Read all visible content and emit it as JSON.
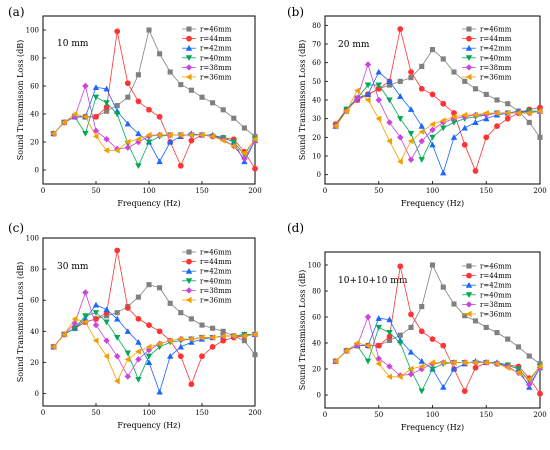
{
  "chart_data": [
    {
      "panel_label": "(a)",
      "thickness": "10 mm",
      "type": "line",
      "xlabel": "Frequency (Hz)",
      "ylabel": "Sound Transmisson Loss (dB)",
      "xlim": [
        0,
        200
      ],
      "ylim": [
        -10,
        110
      ],
      "xticks": [
        "0",
        "50",
        "100",
        "150",
        "200"
      ],
      "yticks": [
        "0",
        "20",
        "40",
        "60",
        "80",
        "100"
      ],
      "legend_position": "top-right",
      "x": [
        10,
        20,
        30,
        40,
        50,
        60,
        70,
        80,
        90,
        100,
        110,
        120,
        130,
        140,
        150,
        160,
        170,
        180,
        190,
        200
      ],
      "series": [
        {
          "name": "r=46mm",
          "color": "#808080",
          "marker": "square",
          "values": [
            26,
            34,
            38,
            38,
            38,
            42,
            46,
            52,
            68,
            100,
            83,
            70,
            61,
            57,
            52,
            48,
            43,
            37,
            30,
            24
          ]
        },
        {
          "name": "r=44mm",
          "color": "#ff3333",
          "marker": "circle",
          "values": [
            26,
            34,
            38,
            38,
            38,
            45,
            99,
            62,
            49,
            43,
            38,
            20,
            3,
            21,
            25,
            24,
            23,
            22,
            13,
            1
          ]
        },
        {
          "name": "r=42mm",
          "color": "#1a66ff",
          "marker": "triangle-up",
          "values": [
            26,
            34,
            38,
            38,
            59,
            58,
            42,
            33,
            26,
            20,
            6,
            20,
            24,
            26,
            25,
            25,
            23,
            20,
            6,
            21
          ]
        },
        {
          "name": "r=40mm",
          "color": "#00aa55",
          "marker": "triangle-down",
          "values": [
            26,
            34,
            38,
            26,
            52,
            48,
            40,
            19,
            3,
            20,
            24,
            25,
            25,
            25,
            25,
            24,
            23,
            20,
            11,
            22
          ]
        },
        {
          "name": "r=38mm",
          "color": "#cc44dd",
          "marker": "diamond",
          "values": [
            26,
            34,
            38,
            60,
            28,
            22,
            15,
            16,
            20,
            24,
            25,
            25,
            25,
            25,
            25,
            24,
            22,
            17,
            8,
            21
          ]
        },
        {
          "name": "r=36mm",
          "color": "#f0a000",
          "marker": "triangle-left",
          "values": [
            26,
            34,
            40,
            38,
            24,
            14,
            14,
            20,
            22,
            25,
            25,
            25,
            25,
            25,
            25,
            24,
            21,
            17,
            12,
            22
          ]
        }
      ]
    },
    {
      "panel_label": "(b)",
      "thickness": "20 mm",
      "type": "line",
      "xlabel": "Frequency (Hz)",
      "ylabel": "Sound Transmisson Loss (dB)",
      "xlim": [
        0,
        200
      ],
      "ylim": [
        -5,
        85
      ],
      "xticks": [
        "0",
        "50",
        "100",
        "150",
        "200"
      ],
      "yticks": [
        "0",
        "10",
        "20",
        "30",
        "40",
        "50",
        "60",
        "70",
        "80"
      ],
      "legend_position": "top-right",
      "x": [
        10,
        20,
        30,
        40,
        50,
        60,
        70,
        80,
        90,
        100,
        110,
        120,
        130,
        140,
        150,
        160,
        170,
        180,
        190,
        200
      ],
      "series": [
        {
          "name": "r=46mm",
          "color": "#808080",
          "marker": "square",
          "values": [
            27,
            35,
            40,
            43,
            46,
            48,
            50,
            52,
            58,
            67,
            62,
            55,
            50,
            46,
            43,
            40,
            38,
            34,
            28,
            20
          ]
        },
        {
          "name": "r=44mm",
          "color": "#ff3333",
          "marker": "circle",
          "values": [
            27,
            35,
            40,
            43,
            46,
            50,
            78,
            55,
            46,
            43,
            38,
            33,
            16,
            2,
            20,
            26,
            30,
            33,
            35,
            36
          ]
        },
        {
          "name": "r=42mm",
          "color": "#1a66ff",
          "marker": "triangle-up",
          "values": [
            26,
            35,
            41,
            43,
            55,
            50,
            42,
            35,
            26,
            16,
            1,
            20,
            25,
            28,
            30,
            32,
            33,
            34,
            34,
            34
          ]
        },
        {
          "name": "r=40mm",
          "color": "#00aa55",
          "marker": "triangle-down",
          "values": [
            26,
            35,
            41,
            48,
            48,
            40,
            30,
            22,
            8,
            20,
            25,
            28,
            30,
            31,
            32,
            33,
            33,
            33,
            34,
            34
          ]
        },
        {
          "name": "r=38mm",
          "color": "#cc44dd",
          "marker": "diamond",
          "values": [
            26,
            34,
            41,
            59,
            40,
            28,
            20,
            8,
            18,
            24,
            28,
            30,
            31,
            32,
            32,
            33,
            33,
            33,
            33,
            34
          ]
        },
        {
          "name": "r=36mm",
          "color": "#f0a000",
          "marker": "triangle-left",
          "values": [
            26,
            34,
            45,
            40,
            30,
            18,
            7,
            18,
            23,
            27,
            29,
            31,
            32,
            32,
            33,
            33,
            33,
            33,
            33,
            34
          ]
        }
      ]
    },
    {
      "panel_label": "(c)",
      "thickness": "30 mm",
      "type": "line",
      "xlabel": "Frequency (Hz)",
      "ylabel": "Sound Transmisson Loss (dB)",
      "xlim": [
        0,
        200
      ],
      "ylim": [
        -8,
        100
      ],
      "xticks": [
        "0",
        "50",
        "100",
        "150",
        "200"
      ],
      "yticks": [
        "0",
        "20",
        "40",
        "60",
        "80",
        "100"
      ],
      "legend_position": "top-right",
      "x": [
        10,
        20,
        30,
        40,
        50,
        60,
        70,
        80,
        90,
        100,
        110,
        120,
        130,
        140,
        150,
        160,
        170,
        180,
        190,
        200
      ],
      "series": [
        {
          "name": "r=46mm",
          "color": "#808080",
          "marker": "square",
          "values": [
            30,
            38,
            42,
            46,
            48,
            50,
            52,
            56,
            62,
            70,
            68,
            58,
            52,
            48,
            44,
            42,
            40,
            37,
            34,
            25
          ]
        },
        {
          "name": "r=44mm",
          "color": "#ff3333",
          "marker": "circle",
          "values": [
            30,
            38,
            42,
            46,
            48,
            52,
            92,
            55,
            48,
            44,
            40,
            34,
            24,
            6,
            24,
            30,
            34,
            36,
            37,
            38
          ]
        },
        {
          "name": "r=42mm",
          "color": "#1a66ff",
          "marker": "triangle-up",
          "values": [
            30,
            38,
            42,
            48,
            57,
            54,
            48,
            40,
            33,
            20,
            1,
            24,
            30,
            33,
            35,
            36,
            37,
            37,
            38,
            38
          ]
        },
        {
          "name": "r=40mm",
          "color": "#00aa55",
          "marker": "triangle-down",
          "values": [
            30,
            38,
            42,
            50,
            52,
            46,
            36,
            26,
            9,
            24,
            30,
            33,
            34,
            35,
            36,
            36,
            37,
            37,
            38,
            38
          ]
        },
        {
          "name": "r=38mm",
          "color": "#cc44dd",
          "marker": "diamond",
          "values": [
            30,
            38,
            45,
            65,
            44,
            34,
            24,
            11,
            22,
            28,
            32,
            34,
            35,
            35,
            36,
            36,
            37,
            37,
            37,
            38
          ]
        },
        {
          "name": "r=36mm",
          "color": "#f0a000",
          "marker": "triangle-left",
          "values": [
            30,
            38,
            48,
            46,
            34,
            24,
            8,
            22,
            27,
            30,
            32,
            34,
            35,
            35,
            36,
            36,
            37,
            37,
            37,
            38
          ]
        }
      ]
    },
    {
      "panel_label": "(d)",
      "thickness": "10+10+10 mm",
      "type": "line",
      "xlabel": "Frequency (Hz)",
      "ylabel": "Sound Transmisson Loss (dB)",
      "xlim": [
        0,
        200
      ],
      "ylim": [
        -10,
        110
      ],
      "xticks": [
        "0",
        "50",
        "100",
        "150",
        "200"
      ],
      "yticks": [
        "0",
        "20",
        "40",
        "60",
        "80",
        "100"
      ],
      "legend_position": "top-right",
      "x": [
        10,
        20,
        30,
        40,
        50,
        60,
        70,
        80,
        90,
        100,
        110,
        120,
        130,
        140,
        150,
        160,
        170,
        180,
        190,
        200
      ],
      "series": [
        {
          "name": "r=46mm",
          "color": "#808080",
          "marker": "square",
          "values": [
            26,
            34,
            38,
            38,
            38,
            42,
            46,
            52,
            68,
            100,
            83,
            70,
            61,
            57,
            52,
            48,
            43,
            37,
            30,
            24
          ]
        },
        {
          "name": "r=44mm",
          "color": "#ff3333",
          "marker": "circle",
          "values": [
            26,
            34,
            38,
            38,
            38,
            45,
            99,
            62,
            49,
            43,
            38,
            20,
            3,
            21,
            25,
            24,
            23,
            22,
            13,
            1
          ]
        },
        {
          "name": "r=42mm",
          "color": "#1a66ff",
          "marker": "triangle-up",
          "values": [
            26,
            34,
            38,
            38,
            59,
            58,
            42,
            33,
            26,
            20,
            6,
            20,
            24,
            26,
            25,
            25,
            23,
            20,
            6,
            21
          ]
        },
        {
          "name": "r=40mm",
          "color": "#00aa55",
          "marker": "triangle-down",
          "values": [
            26,
            34,
            38,
            26,
            52,
            48,
            40,
            19,
            3,
            20,
            24,
            25,
            25,
            25,
            25,
            24,
            23,
            20,
            11,
            22
          ]
        },
        {
          "name": "r=38mm",
          "color": "#cc44dd",
          "marker": "diamond",
          "values": [
            26,
            34,
            38,
            60,
            28,
            22,
            15,
            16,
            20,
            24,
            25,
            25,
            25,
            25,
            25,
            24,
            22,
            17,
            8,
            21
          ]
        },
        {
          "name": "r=36mm",
          "color": "#f0a000",
          "marker": "triangle-left",
          "values": [
            26,
            34,
            40,
            38,
            24,
            14,
            14,
            20,
            22,
            25,
            25,
            25,
            25,
            25,
            25,
            24,
            21,
            17,
            12,
            22
          ]
        }
      ]
    }
  ]
}
